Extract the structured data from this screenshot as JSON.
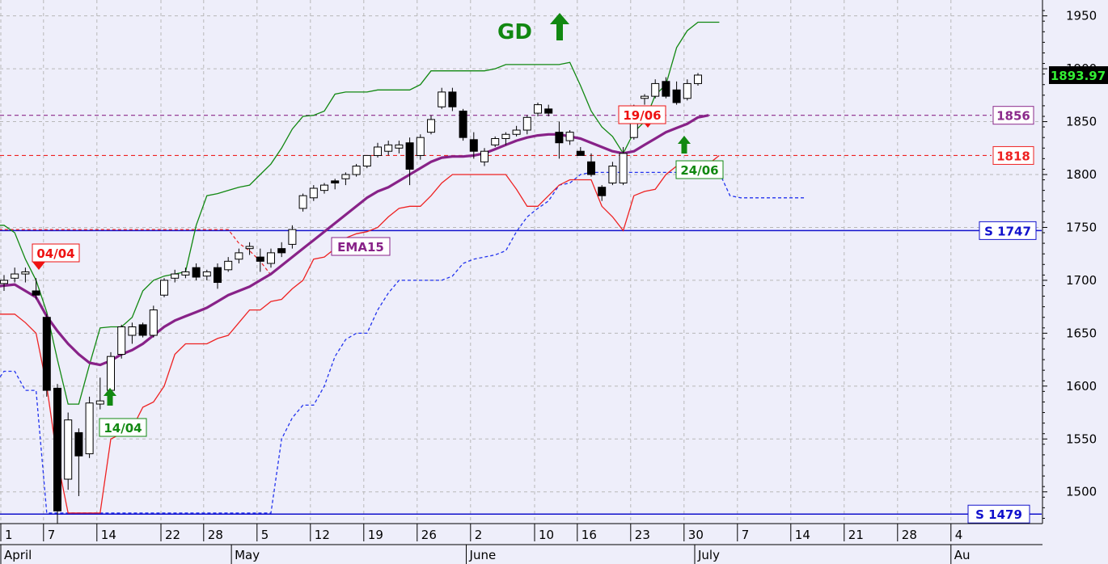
{
  "chart_data": {
    "type": "candlestick",
    "ylim": [
      1470,
      1965
    ],
    "y_ticks": [
      1500,
      1550,
      1600,
      1650,
      1700,
      1750,
      1800,
      1850,
      1900,
      1950
    ],
    "last_price": "1893.97",
    "x_day_ticks": [
      {
        "label": "1",
        "x": 0
      },
      {
        "label": "7",
        "x": 4
      },
      {
        "label": "14",
        "x": 9
      },
      {
        "label": "22",
        "x": 15
      },
      {
        "label": "28",
        "x": 19
      },
      {
        "label": "5",
        "x": 24
      },
      {
        "label": "12",
        "x": 29
      },
      {
        "label": "19",
        "x": 34
      },
      {
        "label": "26",
        "x": 39
      },
      {
        "label": "2",
        "x": 44
      },
      {
        "label": "10",
        "x": 50
      },
      {
        "label": "16",
        "x": 54
      },
      {
        "label": "23",
        "x": 59
      },
      {
        "label": "30",
        "x": 64
      },
      {
        "label": "7",
        "x": 69
      },
      {
        "label": "14",
        "x": 74
      },
      {
        "label": "21",
        "x": 79
      },
      {
        "label": "28",
        "x": 84
      },
      {
        "label": "4",
        "x": 89
      }
    ],
    "x_month_ticks": [
      {
        "label": "April",
        "x": 0
      },
      {
        "label": "May",
        "x": 21.6
      },
      {
        "label": "June",
        "x": 43.6
      },
      {
        "label": "July",
        "x": 65
      },
      {
        "label": "Au",
        "x": 89
      }
    ],
    "candles": [
      [
        1697,
        1705,
        1690,
        1700
      ],
      [
        1702,
        1712,
        1698,
        1706
      ],
      [
        1706,
        1712,
        1698,
        1708
      ],
      [
        1690,
        1702,
        1682,
        1686
      ],
      [
        1665,
        1668,
        1590,
        1596
      ],
      [
        1598,
        1602,
        1470,
        1482
      ],
      [
        1512,
        1575,
        1502,
        1568
      ],
      [
        1556,
        1560,
        1496,
        1534
      ],
      [
        1536,
        1590,
        1532,
        1584
      ],
      [
        1583,
        1608,
        1578,
        1586
      ],
      [
        1596,
        1632,
        1592,
        1628
      ],
      [
        1630,
        1658,
        1626,
        1656
      ],
      [
        1648,
        1660,
        1640,
        1656
      ],
      [
        1658,
        1660,
        1646,
        1648
      ],
      [
        1648,
        1676,
        1646,
        1672
      ],
      [
        1686,
        1702,
        1684,
        1700
      ],
      [
        1702,
        1710,
        1698,
        1706
      ],
      [
        1705,
        1712,
        1702,
        1708
      ],
      [
        1712,
        1716,
        1700,
        1703
      ],
      [
        1704,
        1710,
        1700,
        1708
      ],
      [
        1712,
        1716,
        1692,
        1698
      ],
      [
        1710,
        1722,
        1708,
        1718
      ],
      [
        1720,
        1730,
        1716,
        1726
      ],
      [
        1730,
        1736,
        1724,
        1732
      ],
      [
        1722,
        1730,
        1708,
        1718
      ],
      [
        1716,
        1730,
        1712,
        1726
      ],
      [
        1730,
        1736,
        1722,
        1726
      ],
      [
        1734,
        1752,
        1730,
        1748
      ],
      [
        1768,
        1782,
        1765,
        1780
      ],
      [
        1778,
        1790,
        1775,
        1787
      ],
      [
        1785,
        1792,
        1782,
        1790
      ],
      [
        1794,
        1796,
        1786,
        1792
      ],
      [
        1796,
        1802,
        1790,
        1800
      ],
      [
        1800,
        1810,
        1798,
        1808
      ],
      [
        1808,
        1818,
        1806,
        1818
      ],
      [
        1818,
        1830,
        1816,
        1826
      ],
      [
        1822,
        1832,
        1818,
        1828
      ],
      [
        1825,
        1832,
        1820,
        1828
      ],
      [
        1830,
        1835,
        1790,
        1805
      ],
      [
        1818,
        1838,
        1814,
        1835
      ],
      [
        1840,
        1856,
        1838,
        1852
      ],
      [
        1864,
        1882,
        1862,
        1878
      ],
      [
        1878,
        1882,
        1860,
        1864
      ],
      [
        1860,
        1862,
        1832,
        1835
      ],
      [
        1833,
        1840,
        1815,
        1822
      ],
      [
        1812,
        1825,
        1808,
        1822
      ],
      [
        1828,
        1836,
        1826,
        1834
      ],
      [
        1834,
        1840,
        1828,
        1838
      ],
      [
        1838,
        1846,
        1836,
        1842
      ],
      [
        1842,
        1856,
        1838,
        1854
      ],
      [
        1858,
        1868,
        1855,
        1866
      ],
      [
        1862,
        1866,
        1855,
        1858
      ],
      [
        1840,
        1850,
        1815,
        1830
      ],
      [
        1832,
        1842,
        1828,
        1840
      ],
      [
        1822,
        1826,
        1818,
        1818
      ],
      [
        1812,
        1820,
        1798,
        1800
      ],
      [
        1788,
        1790,
        1775,
        1780
      ],
      [
        1792,
        1812,
        1790,
        1808
      ],
      [
        1792,
        1826,
        1790,
        1820
      ],
      [
        1835,
        1866,
        1833,
        1864
      ],
      [
        1872,
        1876,
        1866,
        1874
      ],
      [
        1874,
        1890,
        1872,
        1886
      ],
      [
        1888,
        1892,
        1872,
        1874
      ],
      [
        1880,
        1888,
        1866,
        1868
      ],
      [
        1872,
        1890,
        1870,
        1886
      ],
      [
        1886,
        1896,
        1884,
        1894
      ]
    ],
    "ema": [
      [
        -1,
        1694
      ],
      [
        1,
        1696
      ],
      [
        2,
        1690
      ],
      [
        3,
        1684
      ],
      [
        4,
        1666
      ],
      [
        5,
        1652
      ],
      [
        6,
        1640
      ],
      [
        7,
        1630
      ],
      [
        8,
        1622
      ],
      [
        9,
        1620
      ],
      [
        10,
        1624
      ],
      [
        11,
        1630
      ],
      [
        12,
        1634
      ],
      [
        13,
        1640
      ],
      [
        14,
        1648
      ],
      [
        15,
        1656
      ],
      [
        16,
        1662
      ],
      [
        17,
        1666
      ],
      [
        18,
        1670
      ],
      [
        19,
        1674
      ],
      [
        20,
        1680
      ],
      [
        21,
        1686
      ],
      [
        22,
        1690
      ],
      [
        23,
        1694
      ],
      [
        24,
        1700
      ],
      [
        25,
        1706
      ],
      [
        26,
        1714
      ],
      [
        27,
        1722
      ],
      [
        28,
        1730
      ],
      [
        29,
        1738
      ],
      [
        30,
        1746
      ],
      [
        31,
        1754
      ],
      [
        32,
        1762
      ],
      [
        33,
        1770
      ],
      [
        34,
        1778
      ],
      [
        35,
        1784
      ],
      [
        36,
        1788
      ],
      [
        37,
        1794
      ],
      [
        38,
        1800
      ],
      [
        39,
        1806
      ],
      [
        40,
        1812
      ],
      [
        41,
        1816
      ],
      [
        42,
        1817
      ],
      [
        43,
        1817
      ],
      [
        44,
        1818
      ],
      [
        45,
        1820
      ],
      [
        46,
        1824
      ],
      [
        47,
        1828
      ],
      [
        48,
        1832
      ],
      [
        49,
        1835
      ],
      [
        50,
        1837
      ],
      [
        51,
        1838
      ],
      [
        52,
        1838
      ],
      [
        53,
        1836
      ],
      [
        54,
        1834
      ],
      [
        55,
        1830
      ],
      [
        56,
        1826
      ],
      [
        57,
        1822
      ],
      [
        58,
        1820
      ],
      [
        59,
        1822
      ],
      [
        60,
        1828
      ],
      [
        61,
        1834
      ],
      [
        62,
        1840
      ],
      [
        63,
        1844
      ],
      [
        64,
        1848
      ],
      [
        65,
        1854
      ],
      [
        66,
        1856
      ]
    ],
    "upper_band": [
      [
        -1,
        1752
      ],
      [
        0,
        1752
      ],
      [
        1,
        1745
      ],
      [
        2,
        1720
      ],
      [
        3,
        1700
      ],
      [
        4,
        1670
      ],
      [
        5,
        1625
      ],
      [
        6,
        1583
      ],
      [
        7,
        1583
      ],
      [
        8,
        1620
      ],
      [
        9,
        1655
      ],
      [
        10,
        1656
      ],
      [
        11,
        1656
      ],
      [
        12,
        1665
      ],
      [
        13,
        1690
      ],
      [
        14,
        1700
      ],
      [
        15,
        1704
      ],
      [
        16,
        1706
      ],
      [
        17,
        1708
      ],
      [
        18,
        1752
      ],
      [
        19,
        1780
      ],
      [
        20,
        1782
      ],
      [
        21,
        1785
      ],
      [
        22,
        1788
      ],
      [
        23,
        1790
      ],
      [
        24,
        1800
      ],
      [
        25,
        1810
      ],
      [
        26,
        1825
      ],
      [
        27,
        1843
      ],
      [
        28,
        1855
      ],
      [
        29,
        1856
      ],
      [
        30,
        1860
      ],
      [
        31,
        1876
      ],
      [
        32,
        1878
      ],
      [
        33,
        1878
      ],
      [
        34,
        1878
      ],
      [
        35,
        1880
      ],
      [
        36,
        1880
      ],
      [
        37,
        1880
      ],
      [
        38,
        1880
      ],
      [
        39,
        1885
      ],
      [
        40,
        1898
      ],
      [
        41,
        1898
      ],
      [
        42,
        1898
      ],
      [
        43,
        1898
      ],
      [
        44,
        1898
      ],
      [
        45,
        1898
      ],
      [
        46,
        1900
      ],
      [
        47,
        1904
      ],
      [
        48,
        1904
      ],
      [
        49,
        1904
      ],
      [
        50,
        1904
      ],
      [
        51,
        1904
      ],
      [
        52,
        1904
      ],
      [
        53,
        1906
      ],
      [
        54,
        1884
      ],
      [
        55,
        1860
      ],
      [
        56,
        1845
      ],
      [
        57,
        1836
      ],
      [
        58,
        1820
      ],
      [
        59,
        1840
      ],
      [
        60,
        1850
      ],
      [
        61,
        1875
      ],
      [
        62,
        1885
      ],
      [
        63,
        1920
      ],
      [
        64,
        1936
      ],
      [
        65,
        1944
      ],
      [
        66,
        1944
      ],
      [
        67,
        1944
      ]
    ],
    "lower_band": [
      [
        -1,
        1668
      ],
      [
        1,
        1668
      ],
      [
        2,
        1660
      ],
      [
        3,
        1650
      ],
      [
        4,
        1600
      ],
      [
        5,
        1530
      ],
      [
        6,
        1480
      ],
      [
        7,
        1480
      ],
      [
        8,
        1480
      ],
      [
        9,
        1480
      ],
      [
        10,
        1550
      ],
      [
        11,
        1555
      ],
      [
        12,
        1560
      ],
      [
        13,
        1580
      ],
      [
        14,
        1585
      ],
      [
        15,
        1600
      ],
      [
        16,
        1630
      ],
      [
        17,
        1640
      ],
      [
        18,
        1640
      ],
      [
        19,
        1640
      ],
      [
        20,
        1645
      ],
      [
        21,
        1648
      ],
      [
        22,
        1660
      ],
      [
        23,
        1672
      ],
      [
        24,
        1672
      ],
      [
        25,
        1680
      ],
      [
        26,
        1682
      ],
      [
        27,
        1692
      ],
      [
        28,
        1700
      ],
      [
        29,
        1720
      ],
      [
        30,
        1722
      ],
      [
        31,
        1730
      ],
      [
        32,
        1740
      ],
      [
        33,
        1744
      ],
      [
        34,
        1746
      ],
      [
        35,
        1750
      ],
      [
        36,
        1760
      ],
      [
        37,
        1768
      ],
      [
        38,
        1770
      ],
      [
        39,
        1770
      ],
      [
        40,
        1780
      ],
      [
        41,
        1792
      ],
      [
        42,
        1800
      ],
      [
        43,
        1800
      ],
      [
        44,
        1800
      ],
      [
        45,
        1800
      ],
      [
        46,
        1800
      ],
      [
        47,
        1800
      ],
      [
        48,
        1786
      ],
      [
        49,
        1770
      ],
      [
        50,
        1770
      ],
      [
        51,
        1780
      ],
      [
        52,
        1790
      ],
      [
        53,
        1795
      ],
      [
        54,
        1795
      ],
      [
        55,
        1795
      ],
      [
        56,
        1770
      ],
      [
        57,
        1760
      ],
      [
        58,
        1747
      ],
      [
        59,
        1780
      ],
      [
        60,
        1784
      ],
      [
        61,
        1786
      ],
      [
        62,
        1800
      ],
      [
        63,
        1808
      ],
      [
        64,
        1808
      ],
      [
        65,
        1808
      ],
      [
        66,
        1810
      ],
      [
        67,
        1818
      ]
    ],
    "trailing_stop": [
      [
        -1,
        1600
      ],
      [
        0,
        1614
      ],
      [
        1,
        1614
      ],
      [
        2,
        1596
      ],
      [
        3,
        1596
      ],
      [
        4,
        1480
      ],
      [
        5,
        1480
      ],
      [
        6,
        1480
      ],
      [
        7,
        1480
      ],
      [
        8,
        1480
      ],
      [
        9,
        1480
      ],
      [
        10,
        1480
      ],
      [
        11,
        1480
      ],
      [
        12,
        1480
      ],
      [
        13,
        1480
      ],
      [
        14,
        1480
      ],
      [
        15,
        1480
      ],
      [
        16,
        1480
      ],
      [
        17,
        1480
      ],
      [
        18,
        1480
      ],
      [
        19,
        1480
      ],
      [
        20,
        1480
      ],
      [
        21,
        1480
      ],
      [
        22,
        1480
      ],
      [
        23,
        1480
      ],
      [
        24,
        1480
      ],
      [
        25,
        1480
      ],
      [
        26,
        1550
      ],
      [
        27,
        1570
      ],
      [
        28,
        1582
      ],
      [
        29,
        1582
      ],
      [
        30,
        1600
      ],
      [
        31,
        1628
      ],
      [
        32,
        1644
      ],
      [
        33,
        1650
      ],
      [
        34,
        1650
      ],
      [
        35,
        1672
      ],
      [
        36,
        1688
      ],
      [
        37,
        1700
      ],
      [
        38,
        1700
      ],
      [
        39,
        1700
      ],
      [
        40,
        1700
      ],
      [
        41,
        1700
      ],
      [
        42,
        1704
      ],
      [
        43,
        1716
      ],
      [
        44,
        1720
      ],
      [
        45,
        1722
      ],
      [
        46,
        1724
      ],
      [
        47,
        1728
      ],
      [
        48,
        1746
      ],
      [
        49,
        1760
      ],
      [
        50,
        1768
      ],
      [
        51,
        1775
      ],
      [
        52,
        1790
      ],
      [
        53,
        1792
      ],
      [
        54,
        1800
      ],
      [
        55,
        1802
      ],
      [
        56,
        1802
      ],
      [
        57,
        1802
      ],
      [
        58,
        1802
      ],
      [
        59,
        1802
      ],
      [
        60,
        1802
      ],
      [
        61,
        1802
      ],
      [
        62,
        1802
      ],
      [
        63,
        1802
      ],
      [
        64,
        1802
      ],
      [
        65,
        1802
      ],
      [
        66,
        1802
      ],
      [
        67,
        1802
      ],
      [
        68,
        1780
      ],
      [
        69,
        1778
      ],
      [
        70,
        1778
      ],
      [
        71,
        1778
      ],
      [
        72,
        1778
      ],
      [
        73,
        1778
      ],
      [
        74,
        1778
      ],
      [
        75,
        1778
      ]
    ],
    "resistance_dotted": [
      [
        -1,
        1748
      ],
      [
        21,
        1748
      ],
      [
        22,
        1735
      ],
      [
        23,
        1728
      ],
      [
        24,
        1718
      ],
      [
        25,
        1705
      ]
    ],
    "horizontal_lines": [
      {
        "value": 1856,
        "label": "1856",
        "color": "#8b2a8b",
        "style": "dashed"
      },
      {
        "value": 1818,
        "label": "1818",
        "color": "#ee2222",
        "style": "dashed"
      },
      {
        "value": 1747,
        "label": "S 1747",
        "color": "#1111cc",
        "style": "solid"
      },
      {
        "value": 1479,
        "label": "S 1479",
        "color": "#1111cc",
        "style": "solid"
      }
    ],
    "signals": [
      {
        "label": "04/04",
        "date_index": 3,
        "direction": "down",
        "color": "#ee1111"
      },
      {
        "label": "14/04",
        "date_index": 8,
        "direction": "up",
        "color": "#118811"
      },
      {
        "label": "19/06",
        "date_index": 56,
        "direction": "down",
        "color": "#ee1111"
      },
      {
        "label": "24/06",
        "date_index": 59,
        "direction": "up",
        "color": "#118811"
      }
    ],
    "indicator_label": "EMA15",
    "trend_label": "GD",
    "colors": {
      "background": "#eeeefa",
      "ema": "#882288",
      "upper_band": "#118811",
      "lower_band": "#ee2222",
      "trailing_stop": "#2233ee",
      "support": "#1111cc",
      "grid": "#b8b8b8",
      "price_label_bg": "#000000",
      "price_label_fg": "#33ee33"
    }
  }
}
